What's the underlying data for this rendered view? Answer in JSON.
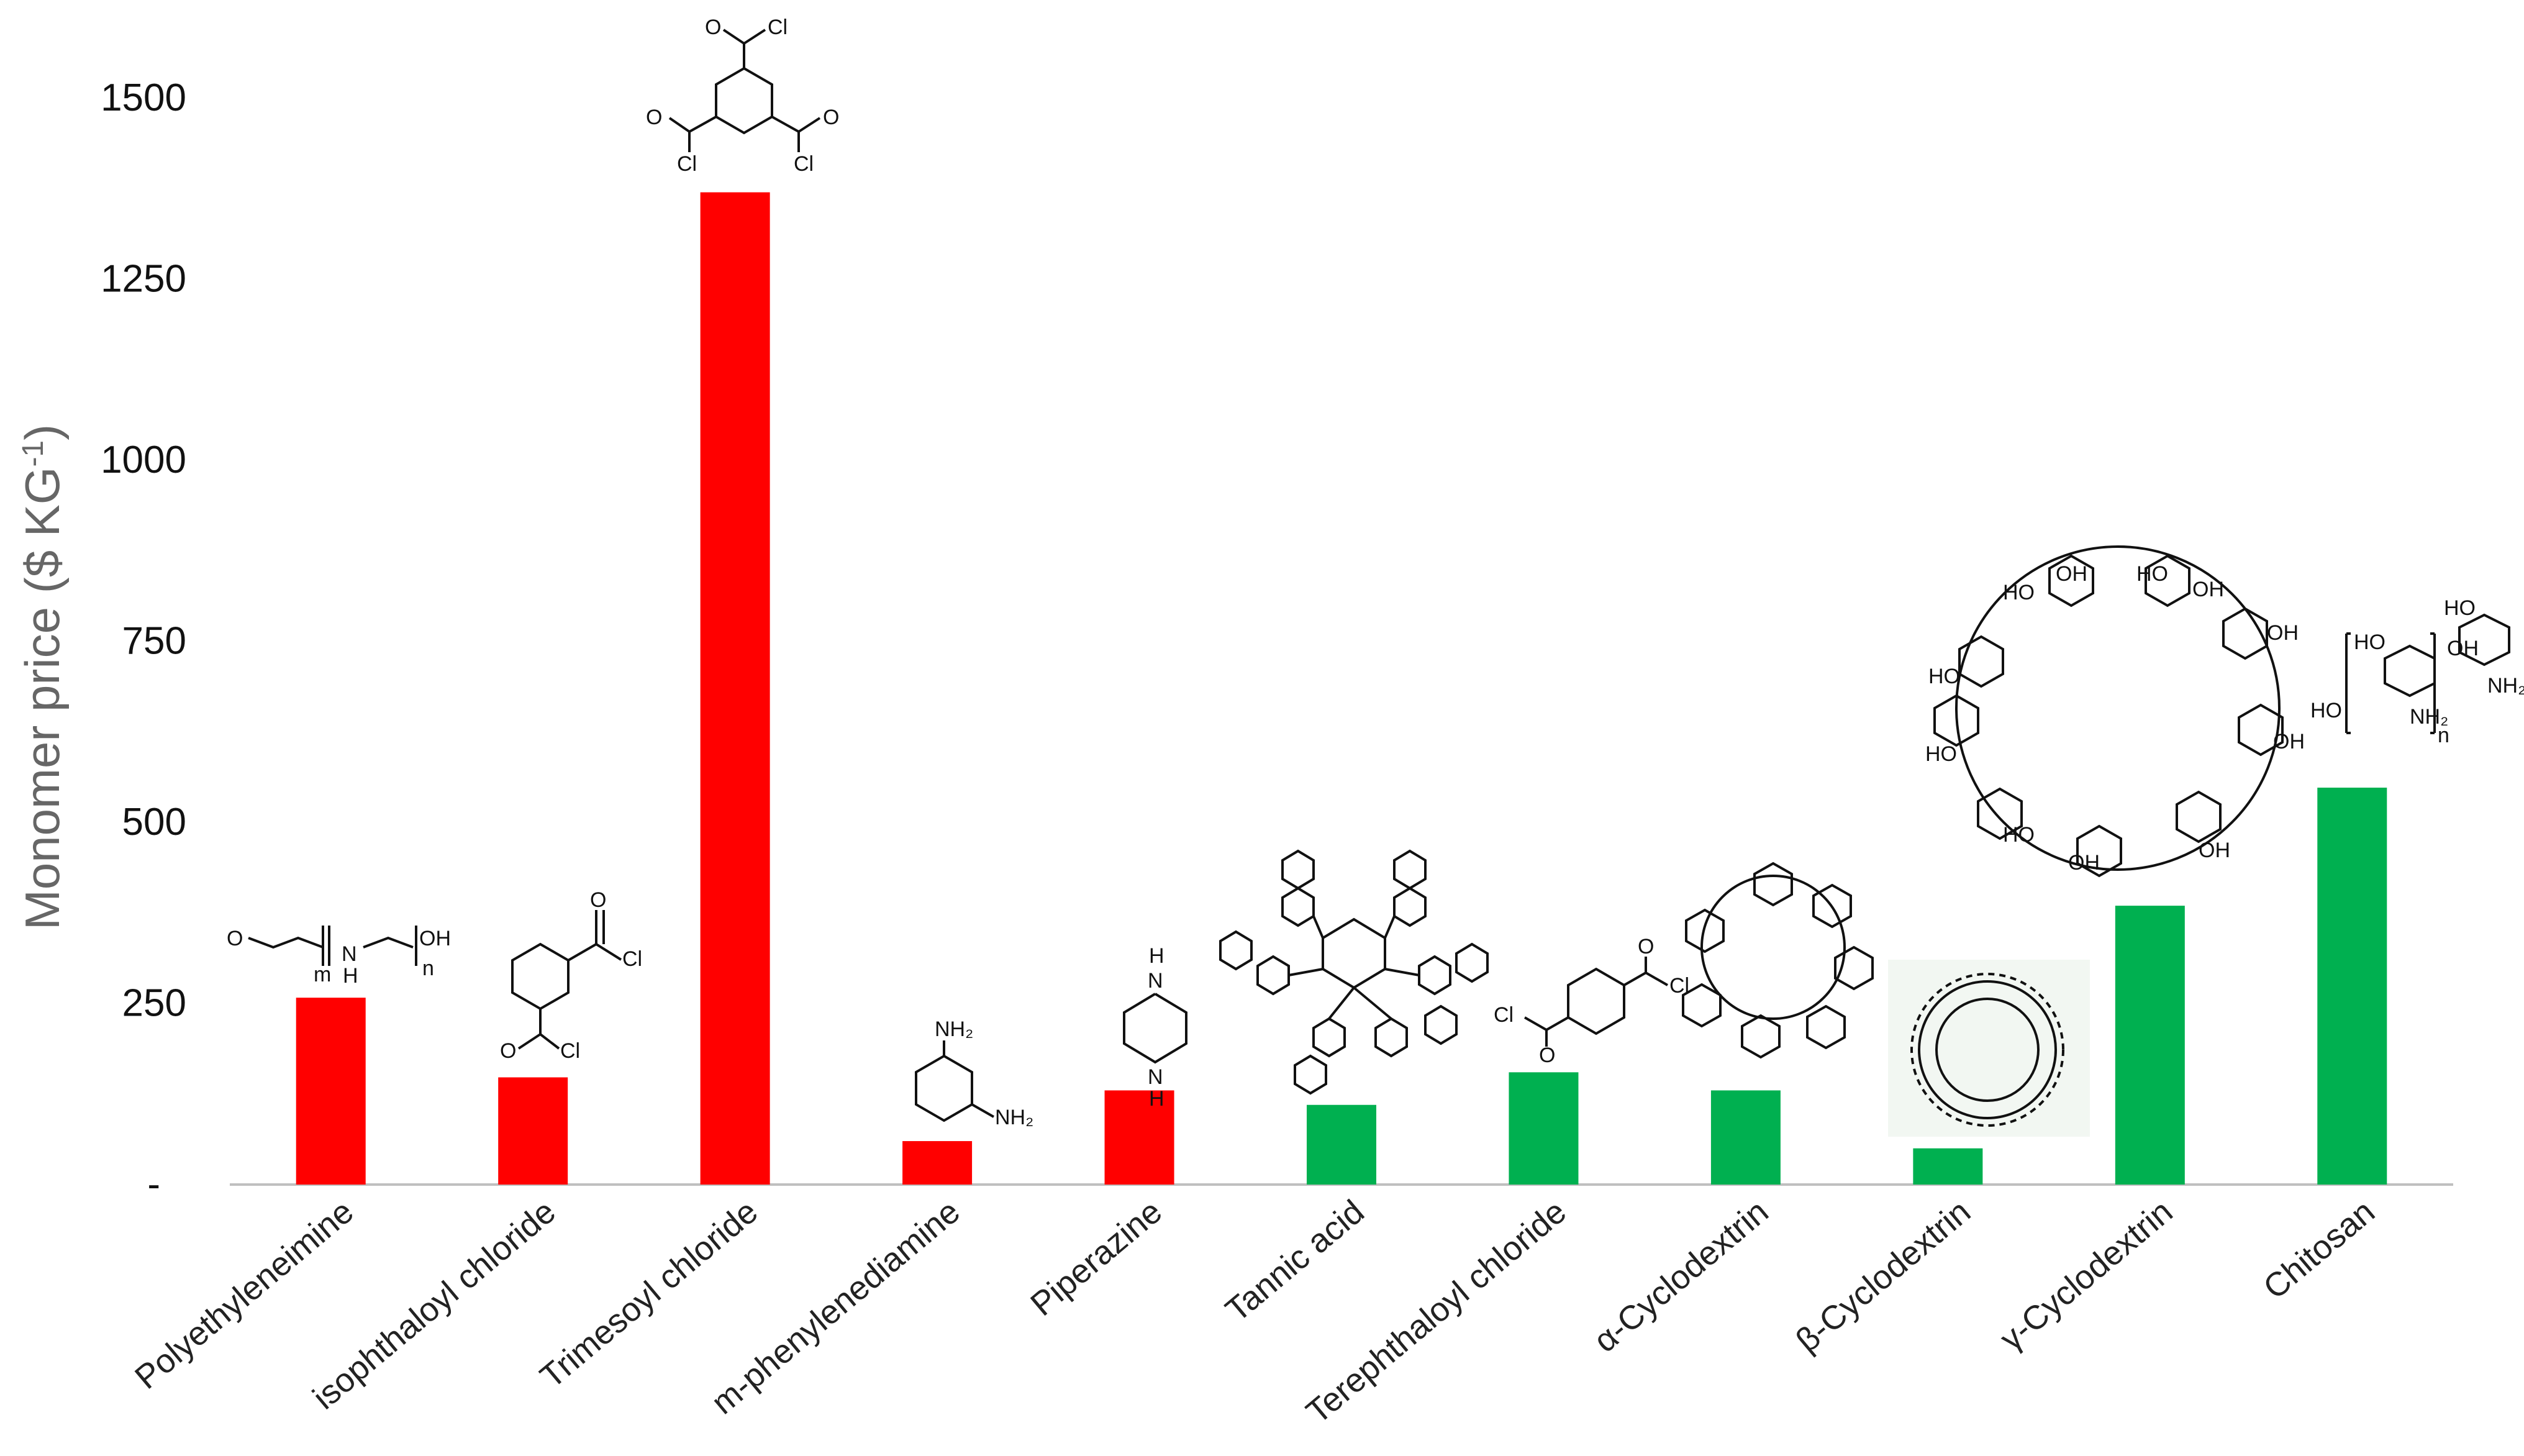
{
  "chart_data": {
    "type": "bar",
    "ylabel": "Monomer price ($ KG",
    "ylabel_superscript": "-1",
    "ylabel_close": ")",
    "ylim": [
      0,
      1500
    ],
    "yticks": [
      {
        "value": 0,
        "label": "-"
      },
      {
        "value": 250,
        "label": "250"
      },
      {
        "value": 500,
        "label": "500"
      },
      {
        "value": 750,
        "label": "750"
      },
      {
        "value": 1000,
        "label": "1000"
      },
      {
        "value": 1250,
        "label": "1250"
      },
      {
        "value": 1500,
        "label": "1500"
      }
    ],
    "grid": false,
    "categories": [
      "Polyethyleneimine",
      "isophthaloyl chloride",
      "Trimesoyl chloride",
      "m-phenylenediamine",
      "Piperazine",
      "Tannic acid",
      "Terephthaloyl chloride",
      "α-Cyclodextrin",
      "β-Cyclodextrin",
      "γ-Cyclodextrin",
      "Chitosan"
    ],
    "values": [
      258,
      148,
      1370,
      60,
      130,
      110,
      155,
      130,
      50,
      385,
      548
    ],
    "bar_colors": [
      "#ff0000",
      "#ff0000",
      "#ff0000",
      "#ff0000",
      "#ff0000",
      "#00b050",
      "#00b050",
      "#00b050",
      "#00b050",
      "#00b050",
      "#00b050"
    ],
    "structure_labels": {
      "cl": "Cl",
      "o": "O",
      "nh2": "NH₂",
      "n": "N",
      "h": "H",
      "oh": "OH",
      "ho": "HO",
      "m": "m",
      "nsub": "n"
    }
  },
  "colors": {
    "axis": "#bfbfbf",
    "red": "#ff0000",
    "green": "#00b050"
  }
}
